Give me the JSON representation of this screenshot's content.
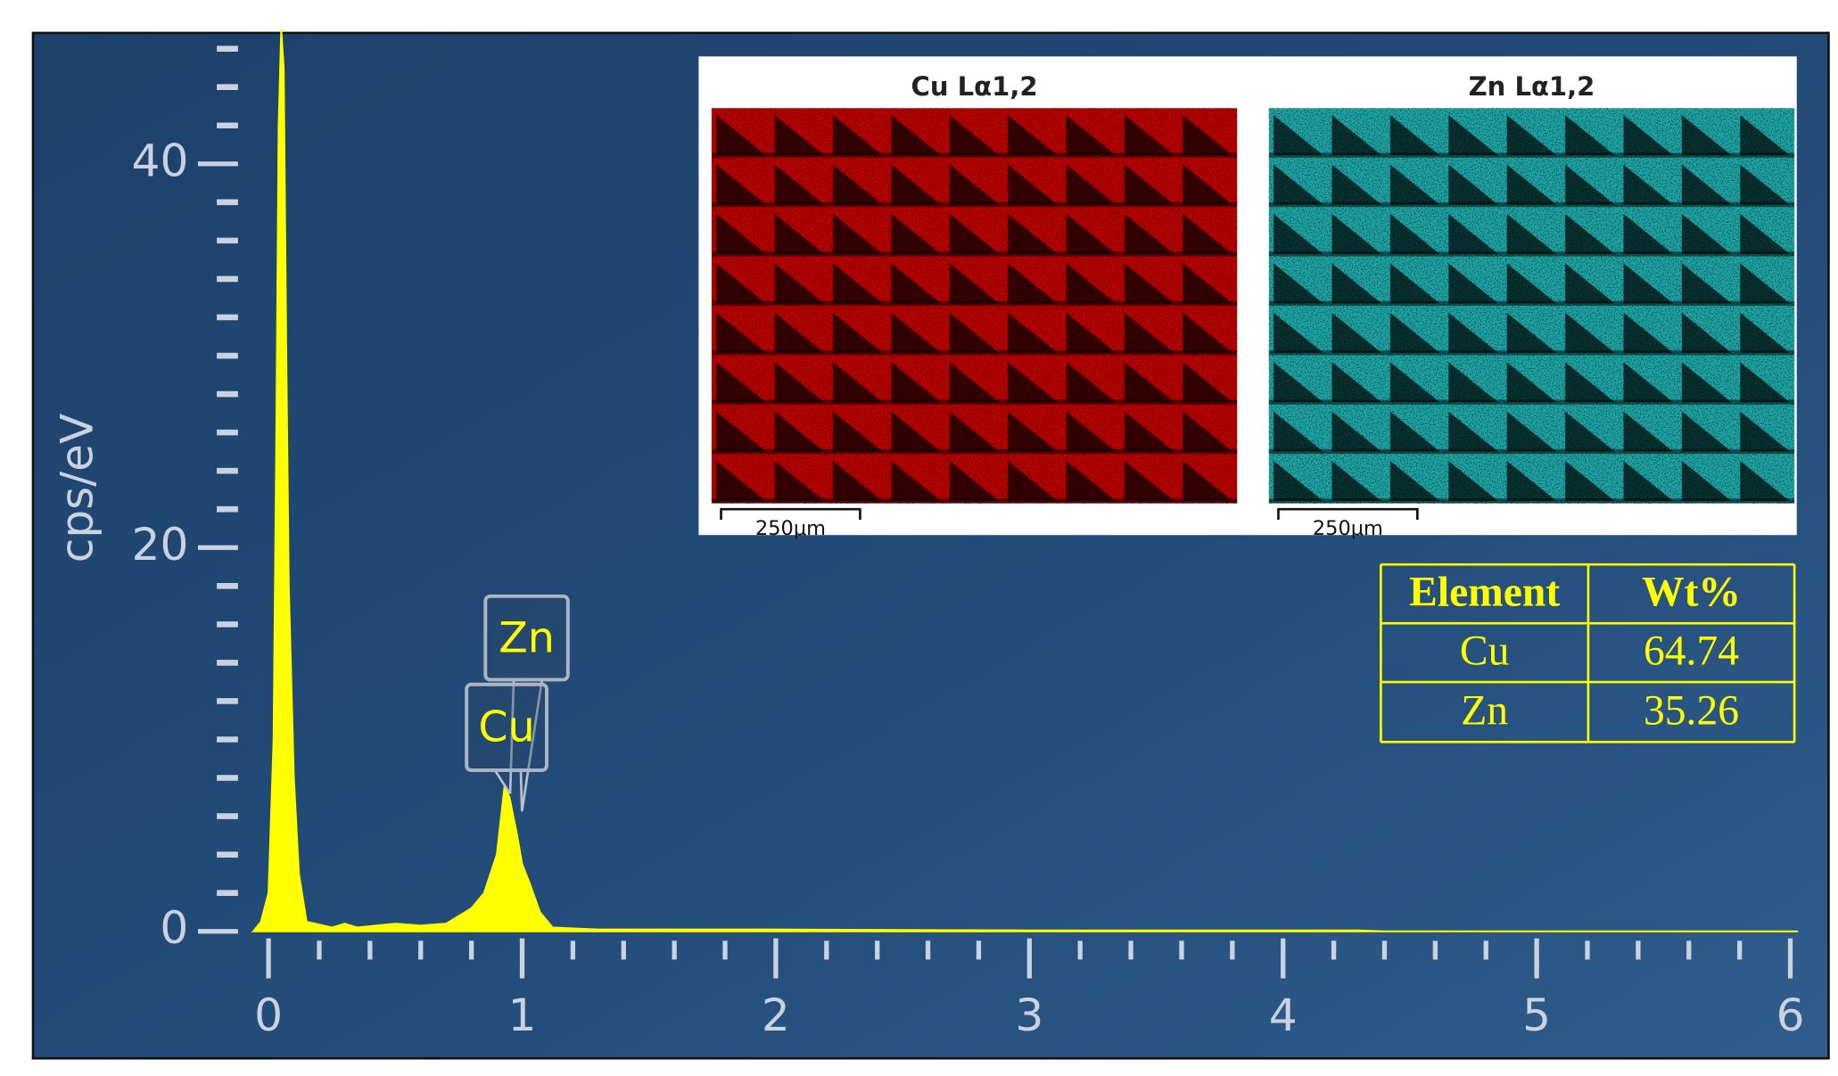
{
  "chart_data": {
    "type": "area",
    "y_label": "cps/eV",
    "color": "#ffff00",
    "x": [
      -0.06,
      -0.03,
      0,
      0.02,
      0.03,
      0.04,
      0.05,
      0.06,
      0.07,
      0.08,
      0.1,
      0.12,
      0.15,
      0.25,
      0.3,
      0.35,
      0.5,
      0.6,
      0.7,
      0.8,
      0.85,
      0.9,
      0.93,
      0.95,
      0.98,
      1.0,
      1.03,
      1.07,
      1.12,
      1.3,
      2,
      3,
      4.3,
      4.4,
      6.03
    ],
    "values": [
      0,
      0.5,
      2,
      10,
      25,
      42,
      47,
      45,
      30,
      18,
      8,
      3,
      0.5,
      0.2,
      0.4,
      0.2,
      0.4,
      0.3,
      0.4,
      1.2,
      2,
      4,
      7.5,
      7,
      5,
      3.5,
      2.5,
      1,
      0.2,
      0.1,
      0.1,
      0.05,
      0.05,
      0,
      0
    ],
    "xlim": [
      -0.06,
      6.03
    ],
    "ylim": [
      0,
      46.7
    ],
    "xticks": [
      0,
      1,
      2,
      3,
      4,
      5,
      6
    ],
    "yticks": [
      0,
      20,
      40
    ],
    "annotations": [
      "Zn",
      "Cu"
    ],
    "maps": [
      {
        "title": "Cu Lα1,2",
        "scale": "250μm",
        "color": "#c00000"
      },
      {
        "title": "Zn Lα1,2",
        "scale": "250μm",
        "color": "#1fa8a8"
      }
    ],
    "table": {
      "header": [
        "Element",
        "Wt%"
      ],
      "rows": [
        [
          "Cu",
          64.74
        ],
        [
          "Zn",
          35.26
        ]
      ]
    }
  }
}
